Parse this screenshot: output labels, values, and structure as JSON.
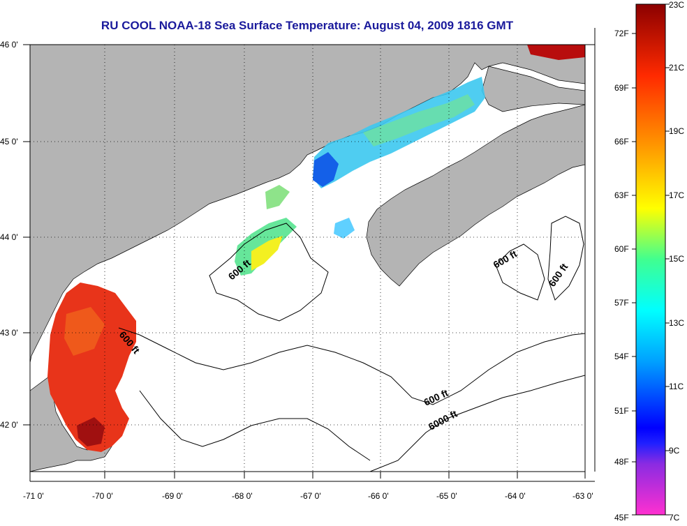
{
  "title": "RU COOL  NOAA-18  Sea Surface Temperature:  August 04, 2009 1816 GMT",
  "map": {
    "lat_ticks": [
      "46 0'",
      "45 0'",
      "44 0'",
      "43 0'",
      "42 0'"
    ],
    "lon_ticks": [
      "-71 0'",
      "-70 0'",
      "-69 0'",
      "-68 0'",
      "-67 0'",
      "-66 0'",
      "-65 0'",
      "-64 0'",
      "-63 0'"
    ],
    "lon_range": [
      -71,
      -63
    ],
    "lat_range": [
      41.55,
      46.05
    ],
    "grid": "dotted",
    "colors": {
      "land": "#b4b4b4",
      "water_no_data": "#ffffff",
      "grid": "#000000"
    },
    "contour_labels": [
      {
        "text": "600 ft",
        "lon": -68.0,
        "lat": 43.55
      },
      {
        "text": "600 ft",
        "lon": -69.75,
        "lat": 42.85
      },
      {
        "text": "600 ft",
        "lon": -63.9,
        "lat": 43.7
      },
      {
        "text": "600 ft",
        "lon": -63.2,
        "lat": 43.55
      },
      {
        "text": "600 ft",
        "lon": -65.05,
        "lat": 42.3
      },
      {
        "text": "6000 ft",
        "lon": -64.75,
        "lat": 42.05
      }
    ]
  },
  "colorbar": {
    "celsius_labels": [
      "23C",
      "21C",
      "19C",
      "17C",
      "15C",
      "13C",
      "11C",
      "9C",
      "7C"
    ],
    "fahrenheit_labels": [
      "72F",
      "69F",
      "66F",
      "63F",
      "60F",
      "57F",
      "54F",
      "51F",
      "48F",
      "45F"
    ],
    "celsius_range": [
      7,
      23
    ],
    "color_stops": [
      "#ff30d0",
      "#8a2be2",
      "#0000ff",
      "#00a0ff",
      "#00ffff",
      "#40ff90",
      "#ffff00",
      "#ff9900",
      "#ff2a00",
      "#8b0000"
    ]
  }
}
